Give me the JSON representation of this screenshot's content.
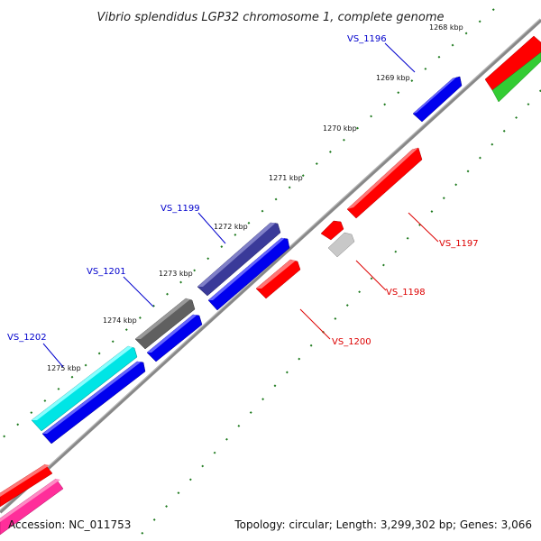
{
  "title": "Vibrio splendidus LGP32 chromosome 1, complete genome",
  "footer": {
    "accession": "Accession: NC_011753",
    "summary": "Topology: circular; Length: 3,299,302 bp; Genes: 3,066"
  },
  "colors": {
    "backbone": "#888888",
    "tick": "#1e7a1e",
    "label_blue": "#0000cc",
    "label_red": "#dd0000"
  },
  "kbp_ticks": [
    "1268 kbp",
    "1269 kbp",
    "1270 kbp",
    "1271 kbp",
    "1272 kbp",
    "1273 kbp",
    "1274 kbp",
    "1275 kbp"
  ],
  "gene_labels": [
    {
      "name": "VS_1196",
      "color": "blue"
    },
    {
      "name": "VS_1197",
      "color": "red"
    },
    {
      "name": "VS_1198",
      "color": "red"
    },
    {
      "name": "VS_1199",
      "color": "blue"
    },
    {
      "name": "VS_1200",
      "color": "red"
    },
    {
      "name": "VS_1201",
      "color": "blue"
    },
    {
      "name": "VS_1202",
      "color": "blue"
    }
  ],
  "features": [
    {
      "id": "outer-red-top",
      "color": "#ff0000",
      "strand": "+"
    },
    {
      "id": "outer-green-top",
      "color": "#33cc33",
      "strand": "+"
    },
    {
      "id": "VS_1196",
      "color": "#0000ee",
      "strand": "+"
    },
    {
      "id": "VS_1197",
      "color": "#ff0000",
      "strand": "-"
    },
    {
      "id": "VS_1198",
      "color": "#c8c8c8",
      "strand": "-"
    },
    {
      "id": "VS_1198b",
      "color": "#ff0000",
      "strand": "-"
    },
    {
      "id": "VS_1199",
      "color": "#0000ee",
      "strand": "+"
    },
    {
      "id": "VS_1199-outer",
      "color": "#3a3a99",
      "strand": "+"
    },
    {
      "id": "VS_1200",
      "color": "#ff0000",
      "strand": "-"
    },
    {
      "id": "VS_1201",
      "color": "#0000ee",
      "strand": "+"
    },
    {
      "id": "VS_1201-outer",
      "color": "#606060",
      "strand": "+"
    },
    {
      "id": "VS_1202",
      "color": "#0000ee",
      "strand": "+"
    },
    {
      "id": "VS_1202-outer",
      "color": "#00e5e5",
      "strand": "+"
    },
    {
      "id": "outer-red-bottom",
      "color": "#ff0000",
      "strand": "+"
    },
    {
      "id": "outer-pink-bottom",
      "color": "#ff2e9a",
      "strand": "+"
    }
  ]
}
